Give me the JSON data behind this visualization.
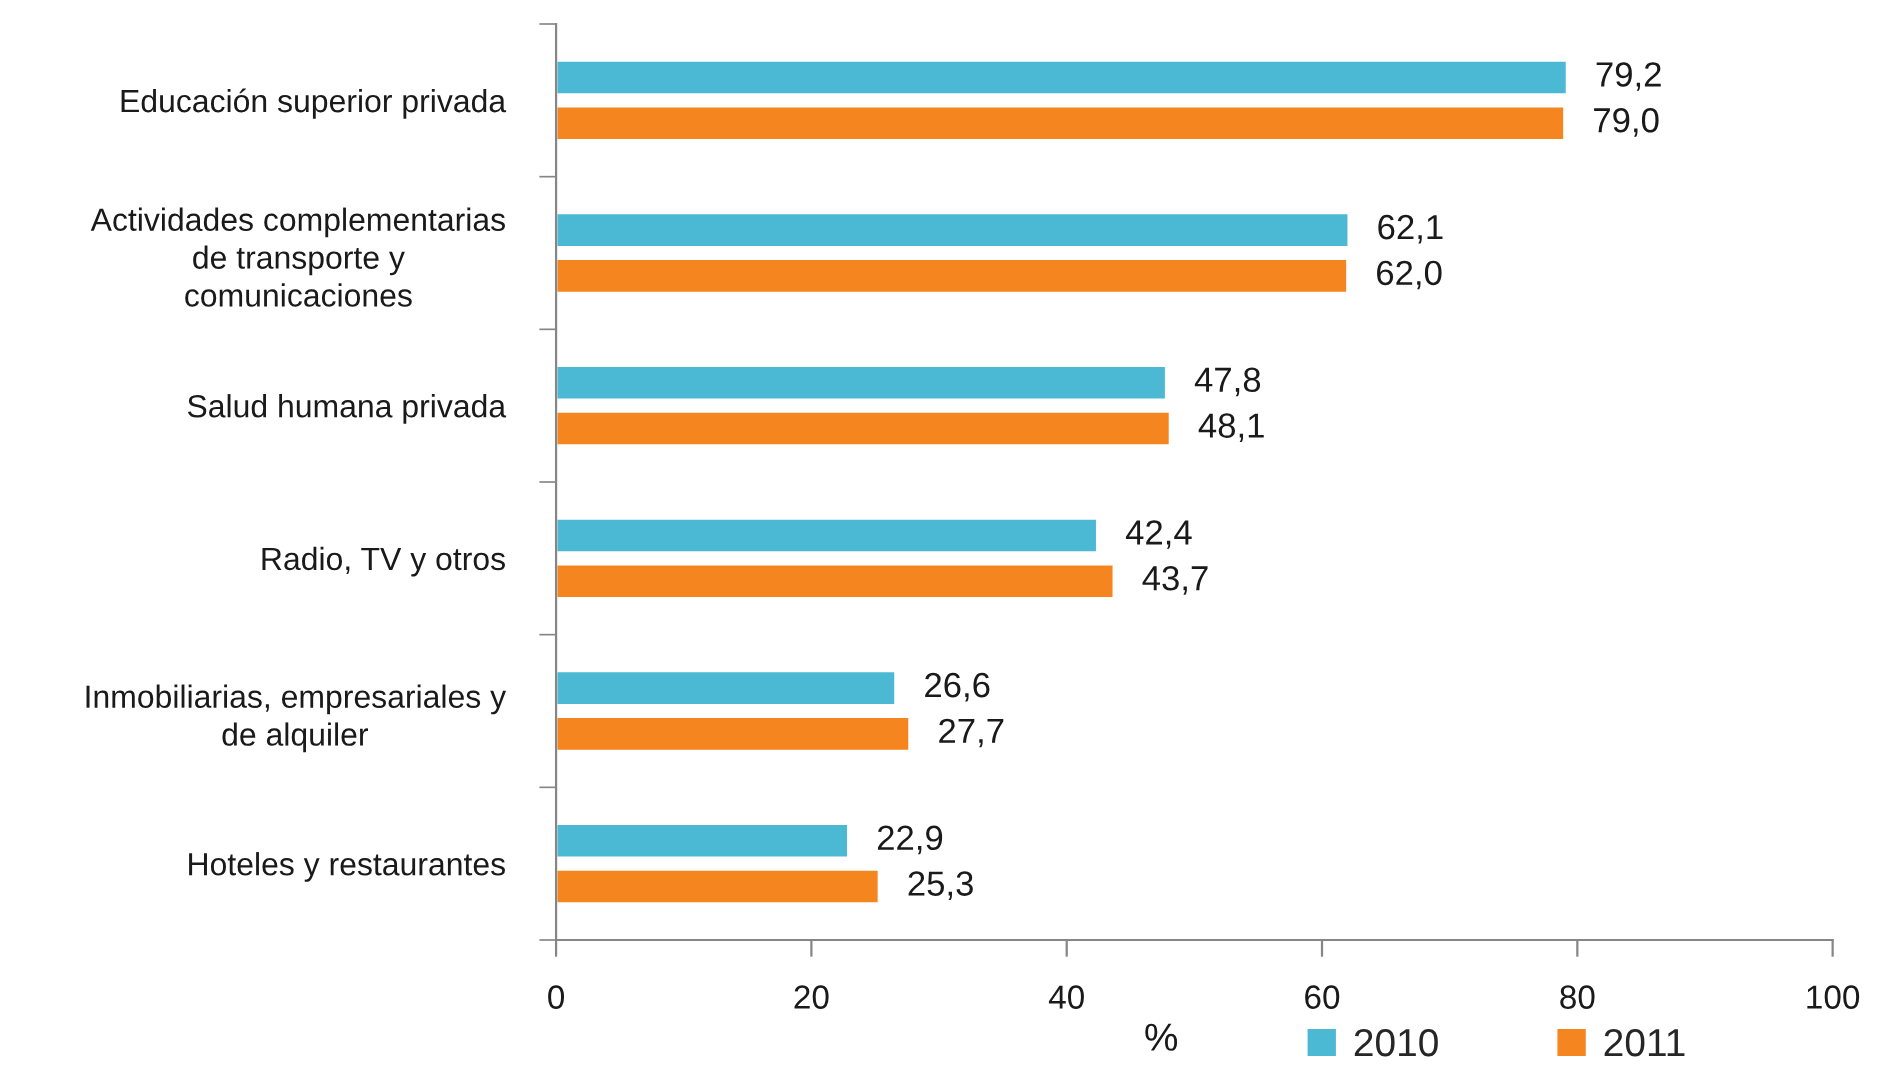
{
  "chart_data": {
    "type": "bar",
    "orientation": "horizontal",
    "categories": [
      "Educación superior privada",
      "Actividades complementarias\nde transporte y\ncomunicaciones",
      "Salud humana privada",
      "Radio, TV y otros",
      "Inmobiliarias, empresariales y\nde alquiler",
      "Hoteles y restaurantes"
    ],
    "series": [
      {
        "name": "2010",
        "color": "#4bb8d4",
        "values": [
          79.2,
          62.1,
          47.8,
          42.4,
          26.6,
          22.9
        ],
        "value_labels": [
          "79,2",
          "62,1",
          "47,8",
          "42,4",
          "26,6",
          "22,9"
        ]
      },
      {
        "name": "2011",
        "color": "#f5861f",
        "values": [
          79.0,
          62.0,
          48.1,
          43.7,
          27.7,
          25.3
        ],
        "value_labels": [
          "79,0",
          "62,0",
          "48,1",
          "43,7",
          "27,7",
          "25,3"
        ]
      }
    ],
    "xlabel": "%",
    "xlim": [
      0,
      100
    ],
    "xticks": [
      0,
      20,
      40,
      60,
      80,
      100
    ],
    "grid": false,
    "legend": "bottom"
  }
}
